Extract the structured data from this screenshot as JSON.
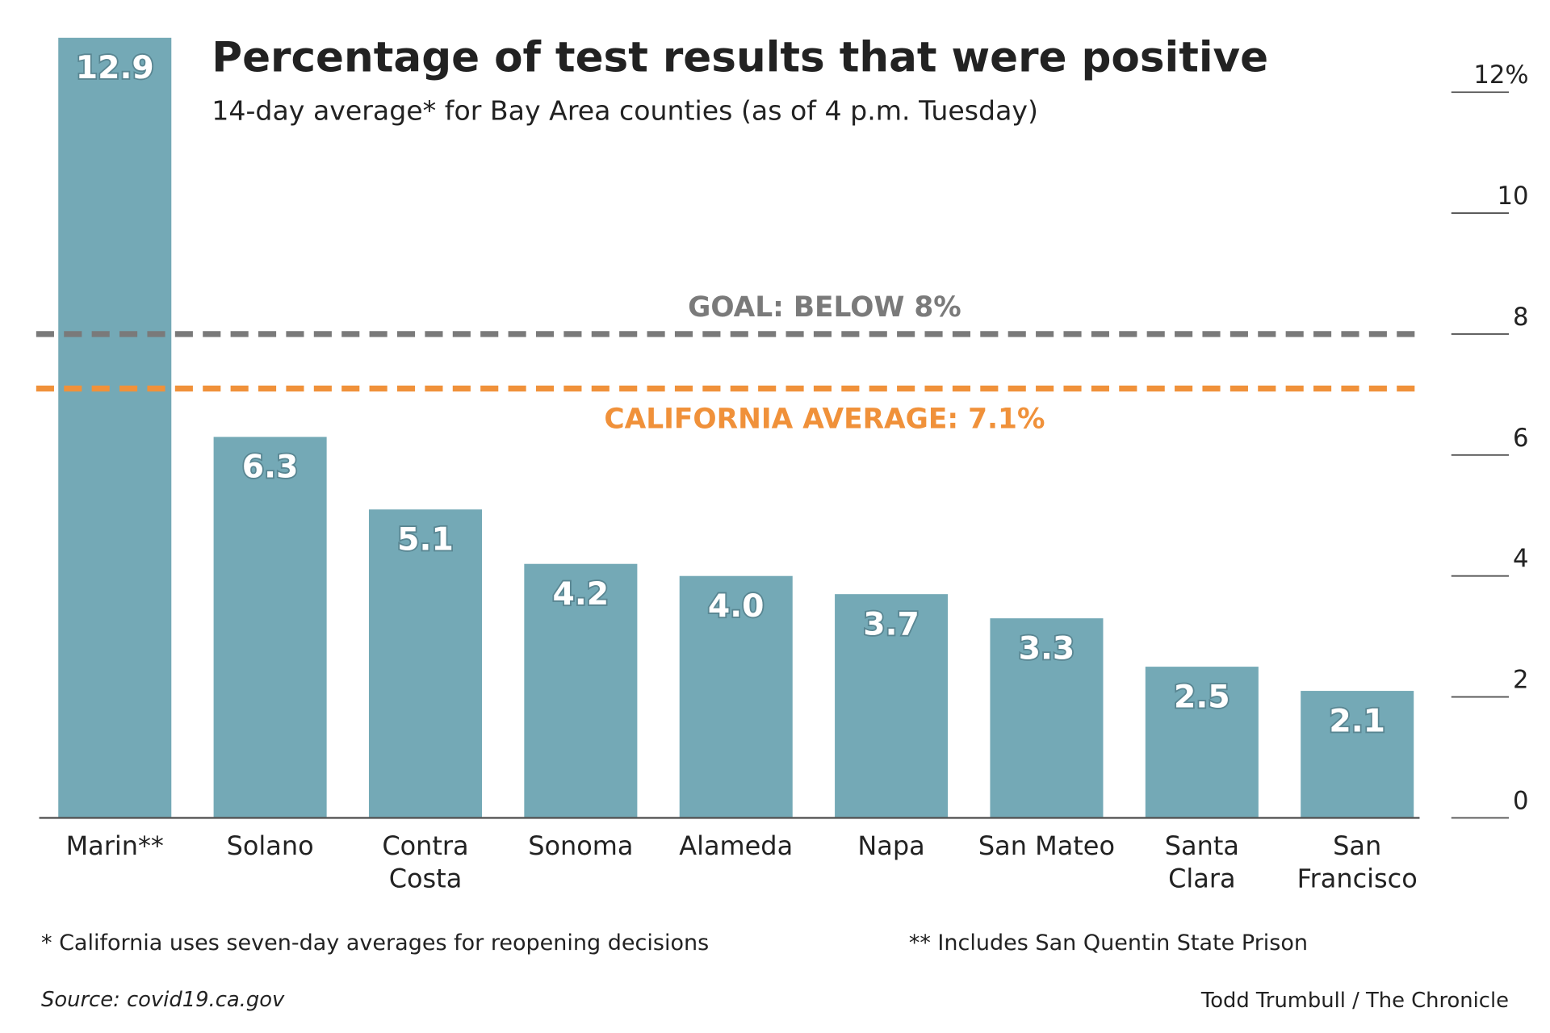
{
  "chart_data": {
    "type": "bar",
    "title": "Percentage of test results that were positive",
    "subtitle": "14-day average* for Bay Area counties (as of 4 p.m. Tuesday)",
    "categories": [
      "Marin**",
      "Solano",
      "Contra Costa",
      "Sonoma",
      "Alameda",
      "Napa",
      "San Mateo",
      "Santa Clara",
      "San Francisco"
    ],
    "values": [
      12.9,
      6.3,
      5.1,
      4.2,
      4.0,
      3.7,
      3.3,
      2.5,
      2.1
    ],
    "value_labels": [
      "12.9",
      "6.3",
      "5.1",
      "4.2",
      "4.0",
      "3.7",
      "3.3",
      "2.5",
      "2.1"
    ],
    "color": "#74a9b6",
    "ylim": [
      0,
      13
    ],
    "yticks": [
      0,
      2,
      4,
      6,
      8,
      10,
      {
        "value": 12,
        "label": "12%"
      }
    ],
    "reference_lines": [
      {
        "value": 8,
        "label": "GOAL: BELOW 8%",
        "color": "#7a7a7a"
      },
      {
        "value": 7.1,
        "label": "CALIFORNIA AVERAGE: 7.1%",
        "color": "#f0913a"
      }
    ],
    "footnotes": [
      "* California uses seven-day averages for reopening decisions",
      "** Includes San Quentin State Prison"
    ],
    "source": "Source: covid19.ca.gov",
    "credit": "Todd Trumbull / The Chronicle"
  }
}
